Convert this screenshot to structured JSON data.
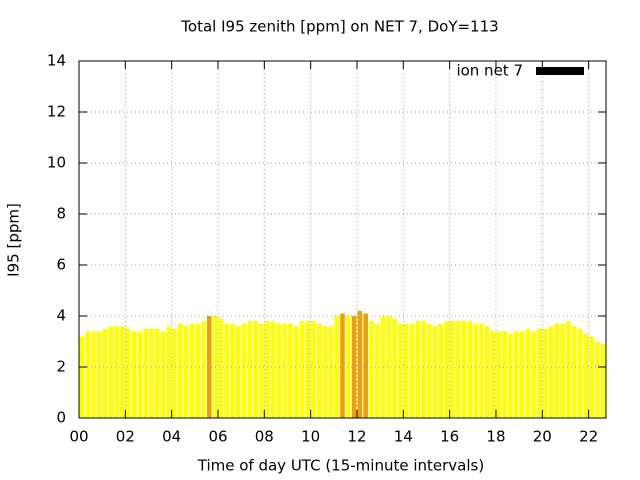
{
  "chart_data": {
    "type": "bar",
    "title": "Total I95 zenith [ppm] on NET 7, DoY=113",
    "x_label": "Time of day UTC (15-minute intervals)",
    "y_label": "I95 [ppm]",
    "x": [
      0.125,
      0.375,
      0.625,
      0.875,
      1.125,
      1.375,
      1.625,
      1.875,
      2.125,
      2.375,
      2.625,
      2.875,
      3.125,
      3.375,
      3.625,
      3.875,
      4.125,
      4.375,
      4.625,
      4.875,
      5.125,
      5.375,
      5.625,
      5.875,
      6.125,
      6.375,
      6.625,
      6.875,
      7.125,
      7.375,
      7.625,
      7.875,
      8.125,
      8.375,
      8.625,
      8.875,
      9.125,
      9.375,
      9.625,
      9.875,
      10.125,
      10.375,
      10.625,
      10.875,
      11.125,
      11.375,
      11.625,
      11.875,
      12.125,
      12.375,
      12.625,
      12.875,
      13.125,
      13.375,
      13.625,
      13.875,
      14.125,
      14.375,
      14.625,
      14.875,
      15.125,
      15.375,
      15.625,
      15.875,
      16.125,
      16.375,
      16.625,
      16.875,
      17.125,
      17.375,
      17.625,
      17.875,
      18.125,
      18.375,
      18.625,
      18.875,
      19.125,
      19.375,
      19.625,
      19.875,
      20.125,
      20.375,
      20.625,
      20.875,
      21.125,
      21.375,
      21.625,
      21.875,
      22.125,
      22.375,
      22.625
    ],
    "series": [
      {
        "name": "ion net 7",
        "color": "#000000",
        "values": [
          3.2,
          3.4,
          3.4,
          3.4,
          3.5,
          3.6,
          3.6,
          3.6,
          3.5,
          3.4,
          3.4,
          3.5,
          3.5,
          3.5,
          3.4,
          3.6,
          3.5,
          3.7,
          3.6,
          3.7,
          3.7,
          3.8,
          4.0,
          4.0,
          3.9,
          3.7,
          3.7,
          3.6,
          3.7,
          3.8,
          3.8,
          3.7,
          3.8,
          3.8,
          3.7,
          3.7,
          3.7,
          3.6,
          3.8,
          3.8,
          3.8,
          3.7,
          3.6,
          3.6,
          4.0,
          4.1,
          4.0,
          4.0,
          4.2,
          4.1,
          3.8,
          3.7,
          4.0,
          4.0,
          3.9,
          3.7,
          3.7,
          3.7,
          3.8,
          3.8,
          3.7,
          3.6,
          3.7,
          3.8,
          3.8,
          3.8,
          3.8,
          3.8,
          3.7,
          3.7,
          3.6,
          3.4,
          3.4,
          3.4,
          3.3,
          3.4,
          3.4,
          3.5,
          3.4,
          3.5,
          3.5,
          3.6,
          3.7,
          3.7,
          3.8,
          3.6,
          3.5,
          3.3,
          3.2,
          3.0,
          2.9
        ],
        "bar_colors": [
          "#ffff00",
          "#ffff00",
          "#ffff00",
          "#ffff00",
          "#ffff00",
          "#ffff00",
          "#ffff00",
          "#ffff00",
          "#ffff00",
          "#ffff00",
          "#ffff00",
          "#ffff00",
          "#ffff00",
          "#ffff00",
          "#ffff00",
          "#ffff00",
          "#ffff00",
          "#ffff00",
          "#ffff00",
          "#ffff00",
          "#ffff00",
          "#ffff00",
          "#f0a000",
          "#ffff00",
          "#ffff00",
          "#ffff00",
          "#ffff00",
          "#ffff00",
          "#ffff00",
          "#ffff00",
          "#ffff00",
          "#ffff00",
          "#ffff00",
          "#ffff00",
          "#ffff00",
          "#ffff00",
          "#ffff00",
          "#ffff00",
          "#ffff00",
          "#ffff00",
          "#ffff00",
          "#ffff00",
          "#ffff00",
          "#ffff00",
          "#ffff00",
          "#f0a000",
          "#ffff00",
          "#f0a000",
          "#f0a000",
          "#f0a000",
          "#ffff00",
          "#ffff00",
          "#ffff00",
          "#ffff00",
          "#ffff00",
          "#ffff00",
          "#ffff00",
          "#ffff00",
          "#ffff00",
          "#ffff00",
          "#ffff00",
          "#ffff00",
          "#ffff00",
          "#ffff00",
          "#ffff00",
          "#ffff00",
          "#ffff00",
          "#ffff00",
          "#ffff00",
          "#ffff00",
          "#ffff00",
          "#ffff00",
          "#ffff00",
          "#ffff00",
          "#ffff00",
          "#ffff00",
          "#ffff00",
          "#ffff00",
          "#ffff00",
          "#ffff00",
          "#ffff00",
          "#ffff00",
          "#ffff00",
          "#ffff00",
          "#ffff00",
          "#ffff00",
          "#ffff00",
          "#ffff00",
          "#ffff00",
          "#ffff00",
          "#ffff00"
        ]
      }
    ],
    "xlim": [
      0,
      22.75
    ],
    "xticks": [
      {
        "value": 0,
        "label": "00"
      },
      {
        "value": 2,
        "label": "02"
      },
      {
        "value": 4,
        "label": "04"
      },
      {
        "value": 6,
        "label": "06"
      },
      {
        "value": 8,
        "label": "08"
      },
      {
        "value": 10,
        "label": "10"
      },
      {
        "value": 12,
        "label": "12"
      },
      {
        "value": 14,
        "label": "14"
      },
      {
        "value": 16,
        "label": "16"
      },
      {
        "value": 18,
        "label": "18"
      },
      {
        "value": 20,
        "label": "20"
      },
      {
        "value": 22,
        "label": "22"
      }
    ],
    "ylim": [
      0,
      14
    ],
    "yticks": [
      0,
      2,
      4,
      6,
      8,
      10,
      12,
      14
    ],
    "grid": true,
    "legend": "top-right"
  }
}
